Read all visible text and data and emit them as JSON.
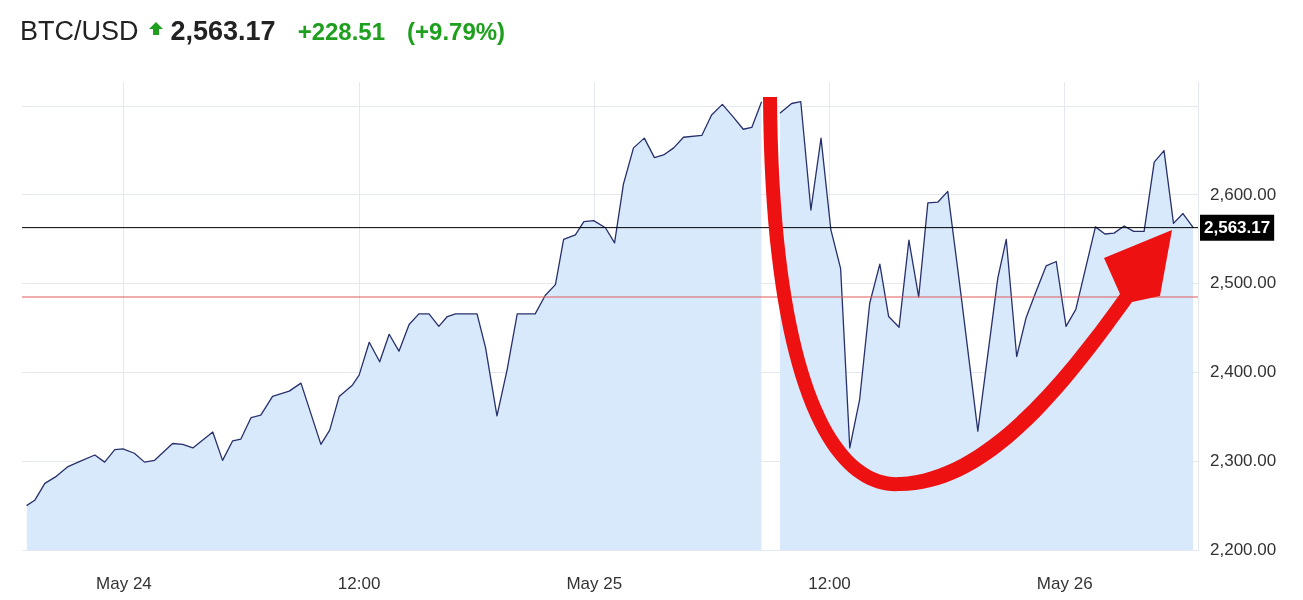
{
  "chart_data": {
    "type": "area",
    "title": "BTC/USD",
    "subtitle": "2,563.17",
    "annotations": [
      "+228.51",
      "(+9.79%)"
    ],
    "x": [
      "--05-23T19:02",
      "--05-23T19:27",
      "--05-23T19:58",
      "--05-23T20:33",
      "--05-23T21:09",
      "--05-23T21:40",
      "--05-23T22:31",
      "--05-23T23:01",
      "--05-23T23:32",
      "--05-23T23:57",
      "--05-24T00:32",
      "--05-24T01:03",
      "--05-24T01:34",
      "--05-24T02:29",
      "--05-24T03:00",
      "--05-24T03:31",
      "--05-24T04:32",
      "--05-24T05:02",
      "--05-24T05:33",
      "--05-24T05:58",
      "--05-24T06:29",
      "--05-24T06:59",
      "--05-24T07:35",
      "--05-24T08:26",
      "--05-24T09:02",
      "--05-24T10:03",
      "--05-24T10:30",
      "--05-24T10:59",
      "--05-24T11:40",
      "--05-24T12:00",
      "--05-24T12:31",
      "--05-24T13:03",
      "--05-24T13:32",
      "--05-24T14:02",
      "--05-24T14:33",
      "--05-24T15:03",
      "--05-24T15:34",
      "--05-24T16:04",
      "--05-24T16:30",
      "--05-24T16:55",
      "--05-24T18:01",
      "--05-24T18:27",
      "--05-24T19:02",
      "--05-24T19:33",
      "--05-24T20:04",
      "--05-24T20:59",
      "--05-24T21:30",
      "--05-24T22:01",
      "--05-24T22:26",
      "--05-24T23:02",
      "--05-24T23:28",
      "--05-24T23:58",
      "--05-25T00:34",
      "--05-25T01:02",
      "--05-25T01:29",
      "--05-25T02:00",
      "--05-25T02:33",
      "--05-25T03:04",
      "--05-25T03:32",
      "--05-25T04:03",
      "--05-25T04:33",
      "--05-25T05:29",
      "--05-25T05:59",
      "--05-25T06:32",
      "--05-25T07:05",
      "--05-25T07:36",
      "--05-25T08:02",
      "--05-25T08:32",
      "--05-25T08:58",
      "--05-25T09:28",
      "--05-25T10:04",
      "--05-25T10:32",
      "--05-25T11:03",
      "--05-25T11:34",
      "--05-25T12:04",
      "--05-25T12:34",
      "--05-25T13:02",
      "--05-25T13:32",
      "--05-25T14:03",
      "--05-25T14:34",
      "--05-25T15:01",
      "--05-25T15:33",
      "--05-25T16:03",
      "--05-25T16:33",
      "--05-25T17:01",
      "--05-25T17:32",
      "--05-25T18:02",
      "--05-25T18:43",
      "--05-25T19:34",
      "--05-25T20:35",
      "--05-25T21:01",
      "--05-25T21:33",
      "--05-25T22:02",
      "--05-25T22:32",
      "--05-25T23:03",
      "--05-25T23:34",
      "--05-26T00:04",
      "--05-26T00:34",
      "--05-26T01:34",
      "--05-26T02:03",
      "--05-26T02:31",
      "--05-26T03:02",
      "--05-26T03:31",
      "--05-26T04:03",
      "--05-26T04:34",
      "--05-26T05:04",
      "--05-26T05:33",
      "--05-26T06:02",
      "--05-26T06:34"
    ],
    "series": [
      {
        "color": "#d8e9fc",
        "values": [
          2250,
          2256,
          2275,
          2283,
          2294,
          2299,
          2307,
          2299,
          2313,
          2314,
          2309,
          2299,
          2301,
          2320,
          2319,
          2315,
          2333,
          2301,
          2323,
          2325,
          2349,
          2352,
          2373,
          2379,
          2388,
          2319,
          2335,
          2373,
          2386,
          2397,
          2434,
          2412,
          2443,
          2424,
          2454,
          2466,
          2466,
          2452,
          2463,
          2466,
          2466,
          2428,
          2351,
          2403,
          2466,
          2466,
          2487,
          2499,
          2550,
          2555,
          2570,
          2571,
          2563,
          2546,
          2612,
          2653,
          2664,
          2642,
          2645,
          2653,
          2665,
          2667,
          2690,
          2702,
          2688,
          2674,
          2676,
          2705,
          null,
          2692,
          2703,
          2705,
          2583,
          2664,
          2561,
          2517,
          2315,
          2369,
          2478,
          2522,
          2463,
          2451,
          2549,
          2485,
          2591,
          2592,
          2604,
          2486,
          2334,
          2506,
          2550,
          2418,
          2462,
          2491,
          2520,
          2525,
          2452,
          2471,
          2564,
          2556,
          2557,
          2565,
          2559,
          2559,
          2637,
          2650,
          2568,
          2579,
          2563
        ]
      }
    ],
    "xlim": [
      "--05-23T18:48",
      "--05-26T06:48"
    ],
    "xticks": [
      {
        "value": "--05-24",
        "label": "May 24"
      },
      {
        "value": "--05-24T12:00",
        "label": "12:00"
      },
      {
        "value": "--05-25",
        "label": "May 25"
      },
      {
        "value": "--05-25T12:00",
        "label": "12:00"
      },
      {
        "value": "--05-26",
        "label": "May 26"
      }
    ],
    "ylim": [
      2200,
      2727
    ],
    "yticks": [
      {
        "value": 2200,
        "label": "2,200.00"
      },
      {
        "value": 2300,
        "label": "2,300.00"
      },
      {
        "value": 2400,
        "label": "2,400.00"
      },
      {
        "value": 2500,
        "label": "2,500.00"
      },
      {
        "value": 2600,
        "label": "2,600.00"
      },
      {
        "value": 2700,
        "label": null
      }
    ],
    "ref_lines": [
      {
        "axis": "y",
        "value": 2563.17,
        "label": "2,563.17",
        "color": "#000000"
      },
      {
        "axis": "y",
        "value": 2485,
        "color": "#e05a5a"
      }
    ],
    "grid": true,
    "marker": "none"
  }
}
